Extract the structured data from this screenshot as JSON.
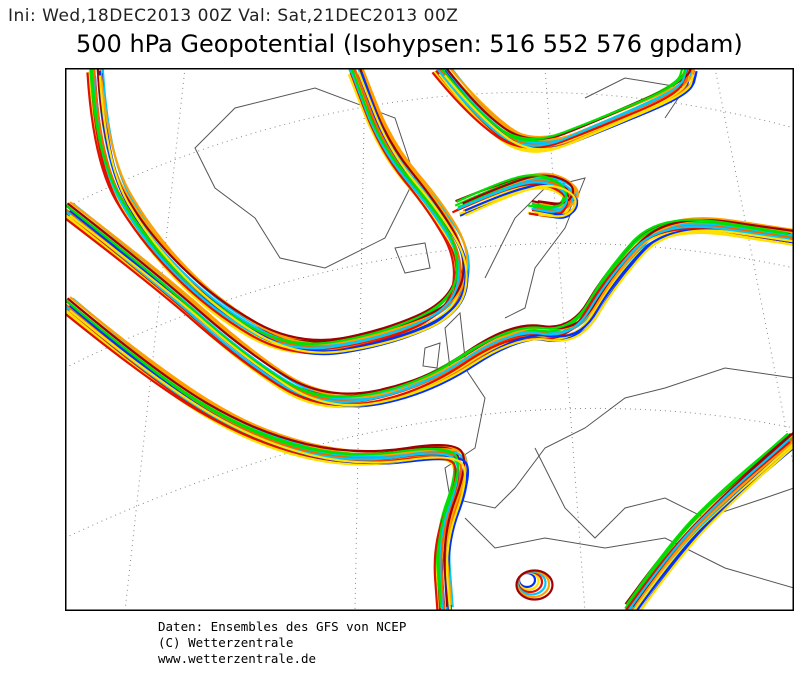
{
  "header": {
    "init_valid": "Ini: Wed,18DEC2013 00Z Val: Sat,21DEC2013 00Z",
    "title": "500 hPa Geopotential (Isohypsen: 516 552 576 gpdam)"
  },
  "footer": {
    "line1": "Daten: Ensembles des GFS von NCEP",
    "line2": "(C) Wetterzentrale",
    "line3": "www.wetterzentrale.de"
  },
  "map": {
    "frame_color": "#000000",
    "coastline_color": "#555555",
    "grid_color": "#888888",
    "member_colors": [
      "#0030ff",
      "#00c8ff",
      "#00e000",
      "#ffe000",
      "#ffa000",
      "#ff6000",
      "#e01000",
      "#a00000"
    ]
  }
}
